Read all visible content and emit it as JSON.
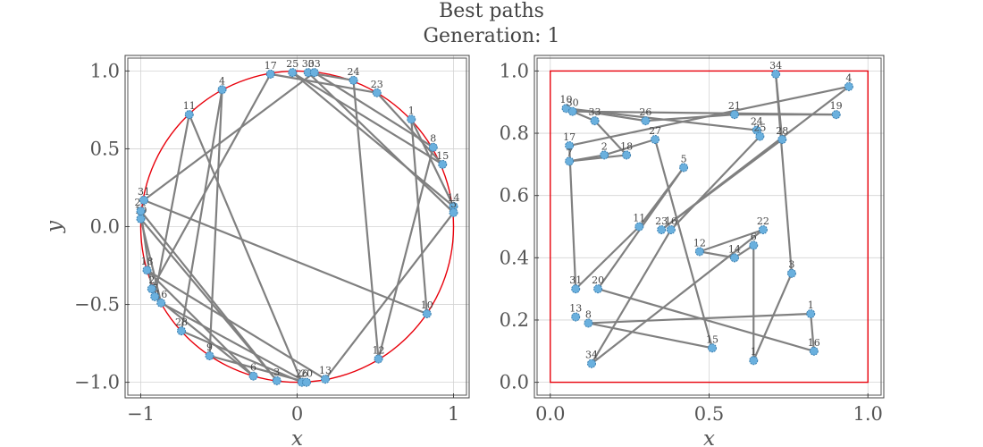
{
  "title_line1": "Best paths",
  "title_line2": "Generation: 1",
  "colors": {
    "path": "#808080",
    "boundary": "#e8000b",
    "node": "#6ab0de",
    "grid": "#d3d3d3"
  },
  "chart_data": [
    {
      "type": "line",
      "boundary": "circle",
      "xlabel": "x",
      "ylabel": "y",
      "xlim": [
        -1.1,
        1.1
      ],
      "ylim": [
        -1.1,
        1.1
      ],
      "xticks": [
        -1,
        0,
        1
      ],
      "yticks": [
        -1.0,
        -0.5,
        0.0,
        0.5,
        1.0
      ],
      "xtick_labels": [
        "−1",
        "0",
        "1"
      ],
      "ytick_labels": [
        "−1.0",
        "−0.5",
        "0.0",
        "0.5",
        "1.0"
      ],
      "grid": true,
      "nodes": [
        {
          "label": "17",
          "x": -0.17,
          "y": 0.98
        },
        {
          "label": "25",
          "x": -0.03,
          "y": 0.99
        },
        {
          "label": "30",
          "x": 0.07,
          "y": 0.99
        },
        {
          "label": "33",
          "x": 0.11,
          "y": 0.99
        },
        {
          "label": "24",
          "x": 0.36,
          "y": 0.94
        },
        {
          "label": "23",
          "x": 0.51,
          "y": 0.86
        },
        {
          "label": "1",
          "x": 0.73,
          "y": 0.69
        },
        {
          "label": "8",
          "x": 0.87,
          "y": 0.51
        },
        {
          "label": "15",
          "x": 0.93,
          "y": 0.4
        },
        {
          "label": "14",
          "x": 1.0,
          "y": 0.13
        },
        {
          "label": "5",
          "x": 1.0,
          "y": 0.09
        },
        {
          "label": "10",
          "x": 0.83,
          "y": -0.56
        },
        {
          "label": "12",
          "x": 0.52,
          "y": -0.85
        },
        {
          "label": "13",
          "x": 0.18,
          "y": -0.98
        },
        {
          "label": "26",
          "x": 0.03,
          "y": -1.0
        },
        {
          "label": "20",
          "x": 0.06,
          "y": -1.0
        },
        {
          "label": "3",
          "x": -0.13,
          "y": -0.99
        },
        {
          "label": "6",
          "x": -0.28,
          "y": -0.96
        },
        {
          "label": "9",
          "x": -0.56,
          "y": -0.83
        },
        {
          "label": "28",
          "x": -0.74,
          "y": -0.67
        },
        {
          "label": "16",
          "x": -0.87,
          "y": -0.49
        },
        {
          "label": "7",
          "x": -0.91,
          "y": -0.45
        },
        {
          "label": "2",
          "x": -0.93,
          "y": -0.4
        },
        {
          "label": "18",
          "x": -0.96,
          "y": -0.28
        },
        {
          "label": "19",
          "x": -1.0,
          "y": 0.05
        },
        {
          "label": "21",
          "x": -1.0,
          "y": 0.1
        },
        {
          "label": "31",
          "x": -0.98,
          "y": 0.17
        },
        {
          "label": "4",
          "x": -0.48,
          "y": 0.88
        },
        {
          "label": "11",
          "x": -0.69,
          "y": 0.72
        }
      ],
      "path": [
        0,
        5,
        8,
        1,
        9,
        6,
        11,
        26,
        3,
        7,
        12,
        4,
        2,
        10,
        13,
        23,
        17,
        21,
        28,
        14,
        19,
        27,
        18,
        15,
        20,
        24,
        16,
        25,
        22,
        0
      ]
    },
    {
      "type": "line",
      "boundary": "square",
      "xlabel": "x",
      "ylabel": "",
      "xlim": [
        -0.05,
        1.05
      ],
      "ylim": [
        -0.05,
        1.05
      ],
      "xticks": [
        0.0,
        0.5,
        1.0
      ],
      "yticks": [
        0.0,
        0.2,
        0.4,
        0.6,
        0.8,
        1.0
      ],
      "xtick_labels": [
        "0.0",
        "0.5",
        "1.0"
      ],
      "ytick_labels": [
        "0.0",
        "0.2",
        "0.4",
        "0.6",
        "0.8",
        "1.0"
      ],
      "grid": true,
      "nodes": [
        {
          "label": "10",
          "x": 0.05,
          "y": 0.88
        },
        {
          "label": "30",
          "x": 0.07,
          "y": 0.87
        },
        {
          "label": "33",
          "x": 0.14,
          "y": 0.84
        },
        {
          "label": "26",
          "x": 0.3,
          "y": 0.84
        },
        {
          "label": "27",
          "x": 0.33,
          "y": 0.78
        },
        {
          "label": "21",
          "x": 0.58,
          "y": 0.86
        },
        {
          "label": "24",
          "x": 0.65,
          "y": 0.81
        },
        {
          "label": "25",
          "x": 0.66,
          "y": 0.79
        },
        {
          "label": "28",
          "x": 0.73,
          "y": 0.78
        },
        {
          "label": "19",
          "x": 0.9,
          "y": 0.86
        },
        {
          "label": "34",
          "x": 0.71,
          "y": 0.99
        },
        {
          "label": "4",
          "x": 0.94,
          "y": 0.95
        },
        {
          "label": "17",
          "x": 0.06,
          "y": 0.76
        },
        {
          "label": "7",
          "x": 0.06,
          "y": 0.71
        },
        {
          "label": "2",
          "x": 0.17,
          "y": 0.73
        },
        {
          "label": "18",
          "x": 0.24,
          "y": 0.73
        },
        {
          "label": "5",
          "x": 0.42,
          "y": 0.69
        },
        {
          "label": "11",
          "x": 0.28,
          "y": 0.5
        },
        {
          "label": "23",
          "x": 0.35,
          "y": 0.49
        },
        {
          "label": "16",
          "x": 0.38,
          "y": 0.49
        },
        {
          "label": "12",
          "x": 0.47,
          "y": 0.42
        },
        {
          "label": "14",
          "x": 0.58,
          "y": 0.4
        },
        {
          "label": "6",
          "x": 0.64,
          "y": 0.44
        },
        {
          "label": "22",
          "x": 0.67,
          "y": 0.49
        },
        {
          "label": "3",
          "x": 0.76,
          "y": 0.35
        },
        {
          "label": "31",
          "x": 0.08,
          "y": 0.3
        },
        {
          "label": "20",
          "x": 0.15,
          "y": 0.3
        },
        {
          "label": "13",
          "x": 0.08,
          "y": 0.21
        },
        {
          "label": "8",
          "x": 0.12,
          "y": 0.19
        },
        {
          "label": "1",
          "x": 0.82,
          "y": 0.22
        },
        {
          "label": "16",
          "x": 0.83,
          "y": 0.1
        },
        {
          "label": "15",
          "x": 0.51,
          "y": 0.11
        },
        {
          "label": "1",
          "x": 0.64,
          "y": 0.07
        },
        {
          "label": "34",
          "x": 0.13,
          "y": 0.06
        }
      ],
      "path": [
        0,
        3,
        5,
        9,
        1,
        2,
        15,
        13,
        14,
        4,
        31,
        28,
        29,
        30,
        26,
        16,
        17,
        25,
        12,
        11,
        18,
        8,
        10,
        24,
        32,
        22,
        21,
        20,
        23,
        33,
        19,
        7,
        6,
        0
      ]
    }
  ]
}
